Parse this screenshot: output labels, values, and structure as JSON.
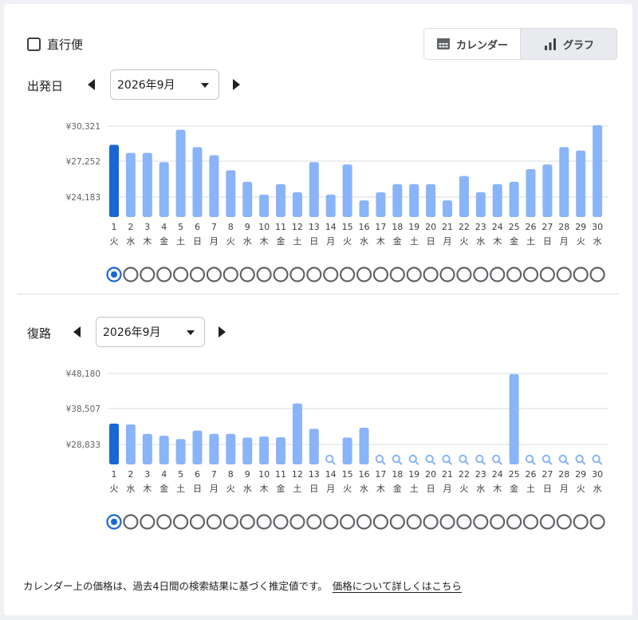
{
  "direct_flight": {
    "label": "直行便",
    "checked": false
  },
  "view_toggle": {
    "calendar_label": "カレンダー",
    "graph_label": "グラフ",
    "selected": "graph"
  },
  "colors": {
    "selected_bar": "#1967d2",
    "bar": "#8ab4f8",
    "ring": "#5f6368",
    "grid": "#dadce0"
  },
  "weekdays": [
    "火",
    "水",
    "木",
    "金",
    "土",
    "日",
    "月",
    "火",
    "水",
    "木",
    "金",
    "土",
    "日",
    "月",
    "火",
    "水",
    "木",
    "金",
    "土",
    "日",
    "月",
    "火",
    "水",
    "木",
    "金",
    "土",
    "日",
    "月",
    "火",
    "水"
  ],
  "days": [
    "1",
    "2",
    "3",
    "4",
    "5",
    "6",
    "7",
    "8",
    "9",
    "10",
    "11",
    "12",
    "13",
    "14",
    "15",
    "16",
    "17",
    "18",
    "19",
    "20",
    "21",
    "22",
    "23",
    "24",
    "25",
    "26",
    "27",
    "28",
    "29",
    "30"
  ],
  "outbound": {
    "label": "出発日",
    "month": "2026年9月",
    "selected_day": 1,
    "chart_data": {
      "type": "bar",
      "y_ticks": [
        "¥30,321",
        "¥27,252",
        "¥24,183"
      ],
      "y_tick_values": [
        30321,
        27252,
        24183
      ],
      "categories": [
        "1",
        "2",
        "3",
        "4",
        "5",
        "6",
        "7",
        "8",
        "9",
        "10",
        "11",
        "12",
        "13",
        "14",
        "15",
        "16",
        "17",
        "18",
        "19",
        "20",
        "21",
        "22",
        "23",
        "24",
        "25",
        "26",
        "27",
        "28",
        "29",
        "30"
      ],
      "values": [
        28700,
        28000,
        28000,
        27200,
        30000,
        28500,
        27800,
        26500,
        25500,
        24400,
        25300,
        24600,
        27200,
        24400,
        27000,
        23900,
        24600,
        25300,
        25300,
        25300,
        23900,
        26000,
        24600,
        25300,
        25500,
        26600,
        27000,
        28500,
        28200,
        30400
      ]
    }
  },
  "return": {
    "label": "復路",
    "month": "2026年9月",
    "selected_day": 1,
    "chart_data": {
      "type": "bar",
      "y_ticks": [
        "¥48,180",
        "¥38,507",
        "¥28,833"
      ],
      "y_tick_values": [
        48180,
        38507,
        28833
      ],
      "categories": [
        "1",
        "2",
        "3",
        "4",
        "5",
        "6",
        "7",
        "8",
        "9",
        "10",
        "11",
        "12",
        "13",
        "14",
        "15",
        "16",
        "17",
        "18",
        "19",
        "20",
        "21",
        "22",
        "23",
        "24",
        "25",
        "26",
        "27",
        "28",
        "29",
        "30"
      ],
      "values": [
        34500,
        34300,
        31700,
        31200,
        30300,
        32600,
        31700,
        31700,
        30700,
        31000,
        30800,
        40000,
        33100,
        null,
        30700,
        33400,
        null,
        null,
        null,
        null,
        null,
        null,
        null,
        null,
        48000,
        null,
        null,
        null,
        null,
        null
      ]
    }
  },
  "footer": {
    "note": "カレンダー上の価格は、過去4日間の検索結果に基づく推定値です。",
    "link": "価格について詳しくはこちら"
  }
}
